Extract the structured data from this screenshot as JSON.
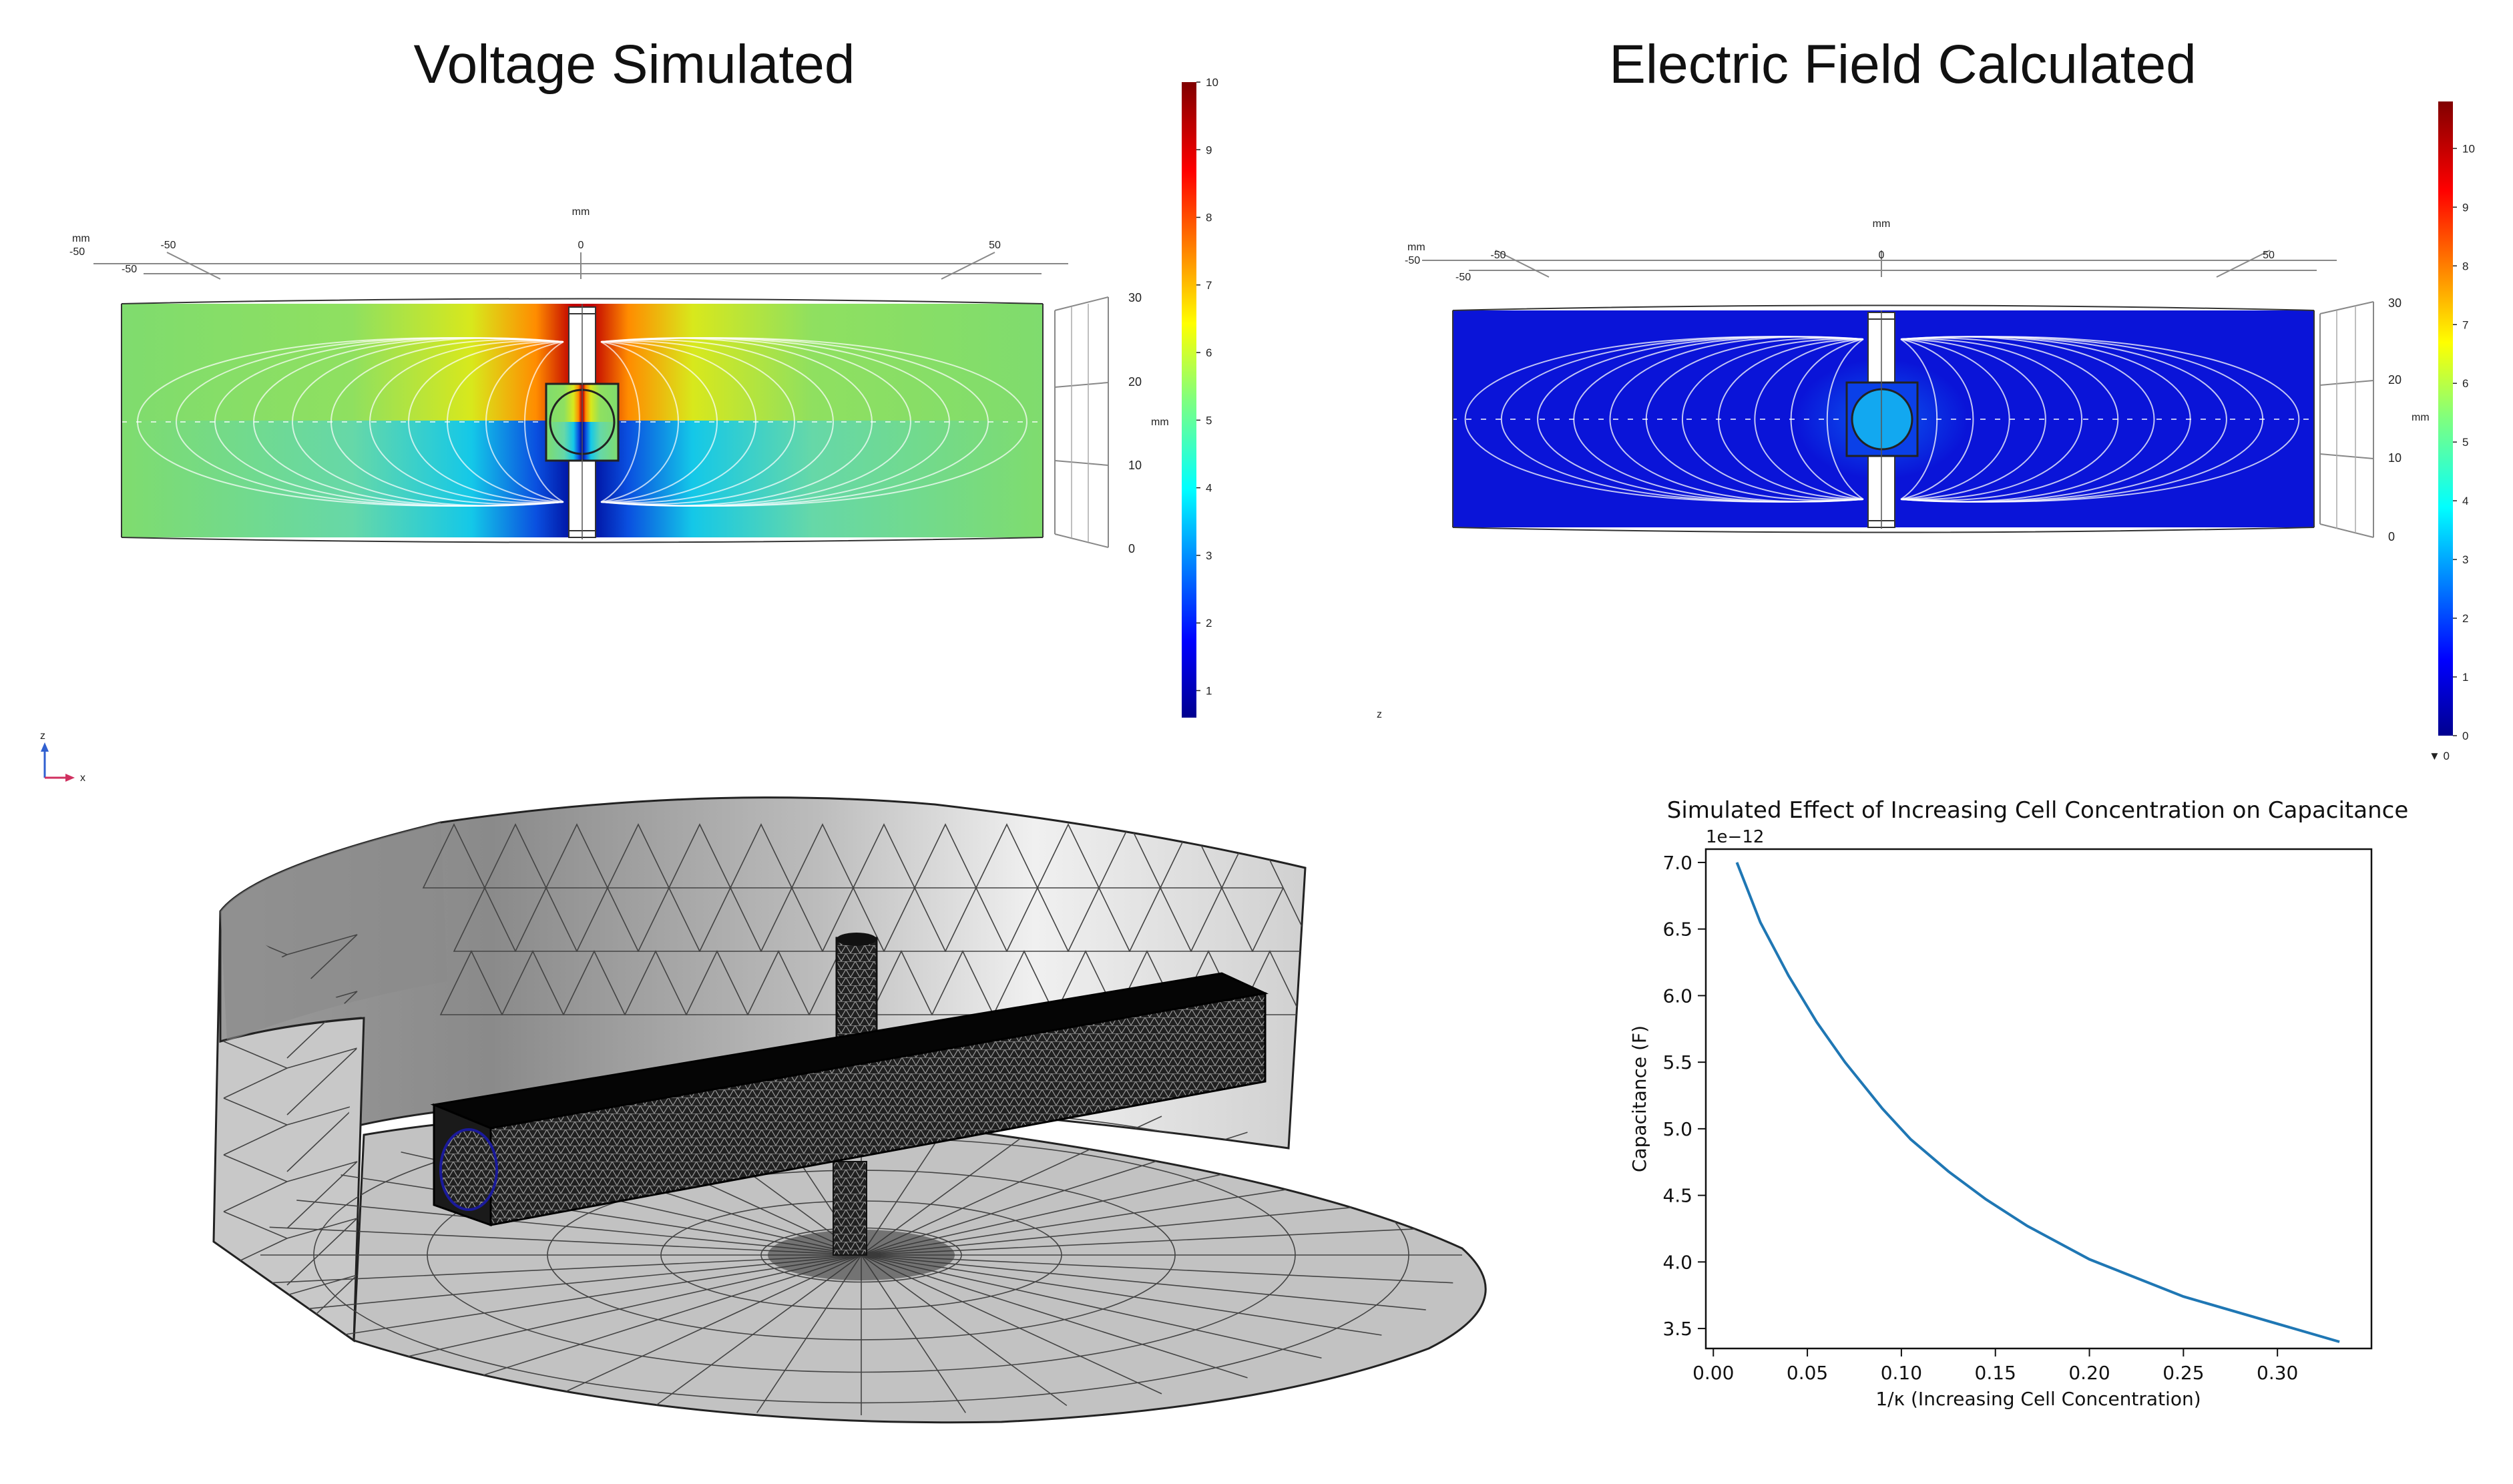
{
  "titles": {
    "voltage": "Voltage Simulated",
    "efield": "Electric Field Calculated"
  },
  "voltage_panel": {
    "unit": "mm",
    "x_ticks": [
      "-50",
      "0",
      "50"
    ],
    "x_ticks_back": [
      "-50",
      "-50"
    ],
    "z_ticks": [
      "30",
      "20",
      "10",
      "0"
    ],
    "colorbar": {
      "min": 0.6,
      "max": 10,
      "ticks": [
        "10",
        "9",
        "8",
        "7",
        "6",
        "5",
        "4",
        "3",
        "2",
        "1"
      ]
    },
    "colors": {
      "field": "#7fdc6e"
    }
  },
  "efield_panel": {
    "unit": "mm",
    "x_ticks": [
      "-50",
      "0",
      "50"
    ],
    "x_ticks_back": [
      "-50",
      "-50"
    ],
    "z_ticks": [
      "30",
      "20",
      "10",
      "0"
    ],
    "colorbar": {
      "min": 0,
      "max": 10.8,
      "ticks": [
        "10",
        "9",
        "8",
        "7",
        "6",
        "5",
        "4",
        "3",
        "2",
        "1",
        "0"
      ],
      "min_marker": "▼ 0"
    },
    "colors": {
      "field": "#0a14d8"
    }
  },
  "axes_triad": {
    "z": "z",
    "x": "x",
    "stray_z": "z"
  },
  "chart_data": {
    "type": "line",
    "title": "Simulated Effect of Increasing Cell Concentration on Capacitance",
    "xlabel": "1/κ (Increasing Cell Concentration)",
    "ylabel": "Capacitance (F)",
    "y_multiplier": "1e−12",
    "xlim": [
      -0.004,
      0.35
    ],
    "ylim": [
      3.35,
      7.1
    ],
    "x_ticks": [
      0.0,
      0.05,
      0.1,
      0.15,
      0.2,
      0.25,
      0.3
    ],
    "x_tick_labels": [
      "0.00",
      "0.05",
      "0.10",
      "0.15",
      "0.20",
      "0.25",
      "0.30"
    ],
    "y_ticks": [
      3.5,
      4.0,
      4.5,
      5.0,
      5.5,
      6.0,
      6.5,
      7.0
    ],
    "y_tick_labels": [
      "3.5",
      "4.0",
      "4.5",
      "5.0",
      "5.5",
      "6.0",
      "6.5",
      "7.0"
    ],
    "line_color": "#1f77b4",
    "x": [
      0.0125,
      0.025,
      0.04,
      0.055,
      0.07,
      0.09,
      0.105,
      0.125,
      0.145,
      0.167,
      0.2,
      0.25,
      0.333
    ],
    "y": [
      7.0,
      6.55,
      6.15,
      5.8,
      5.5,
      5.15,
      4.92,
      4.68,
      4.47,
      4.27,
      4.02,
      3.74,
      3.4
    ]
  }
}
